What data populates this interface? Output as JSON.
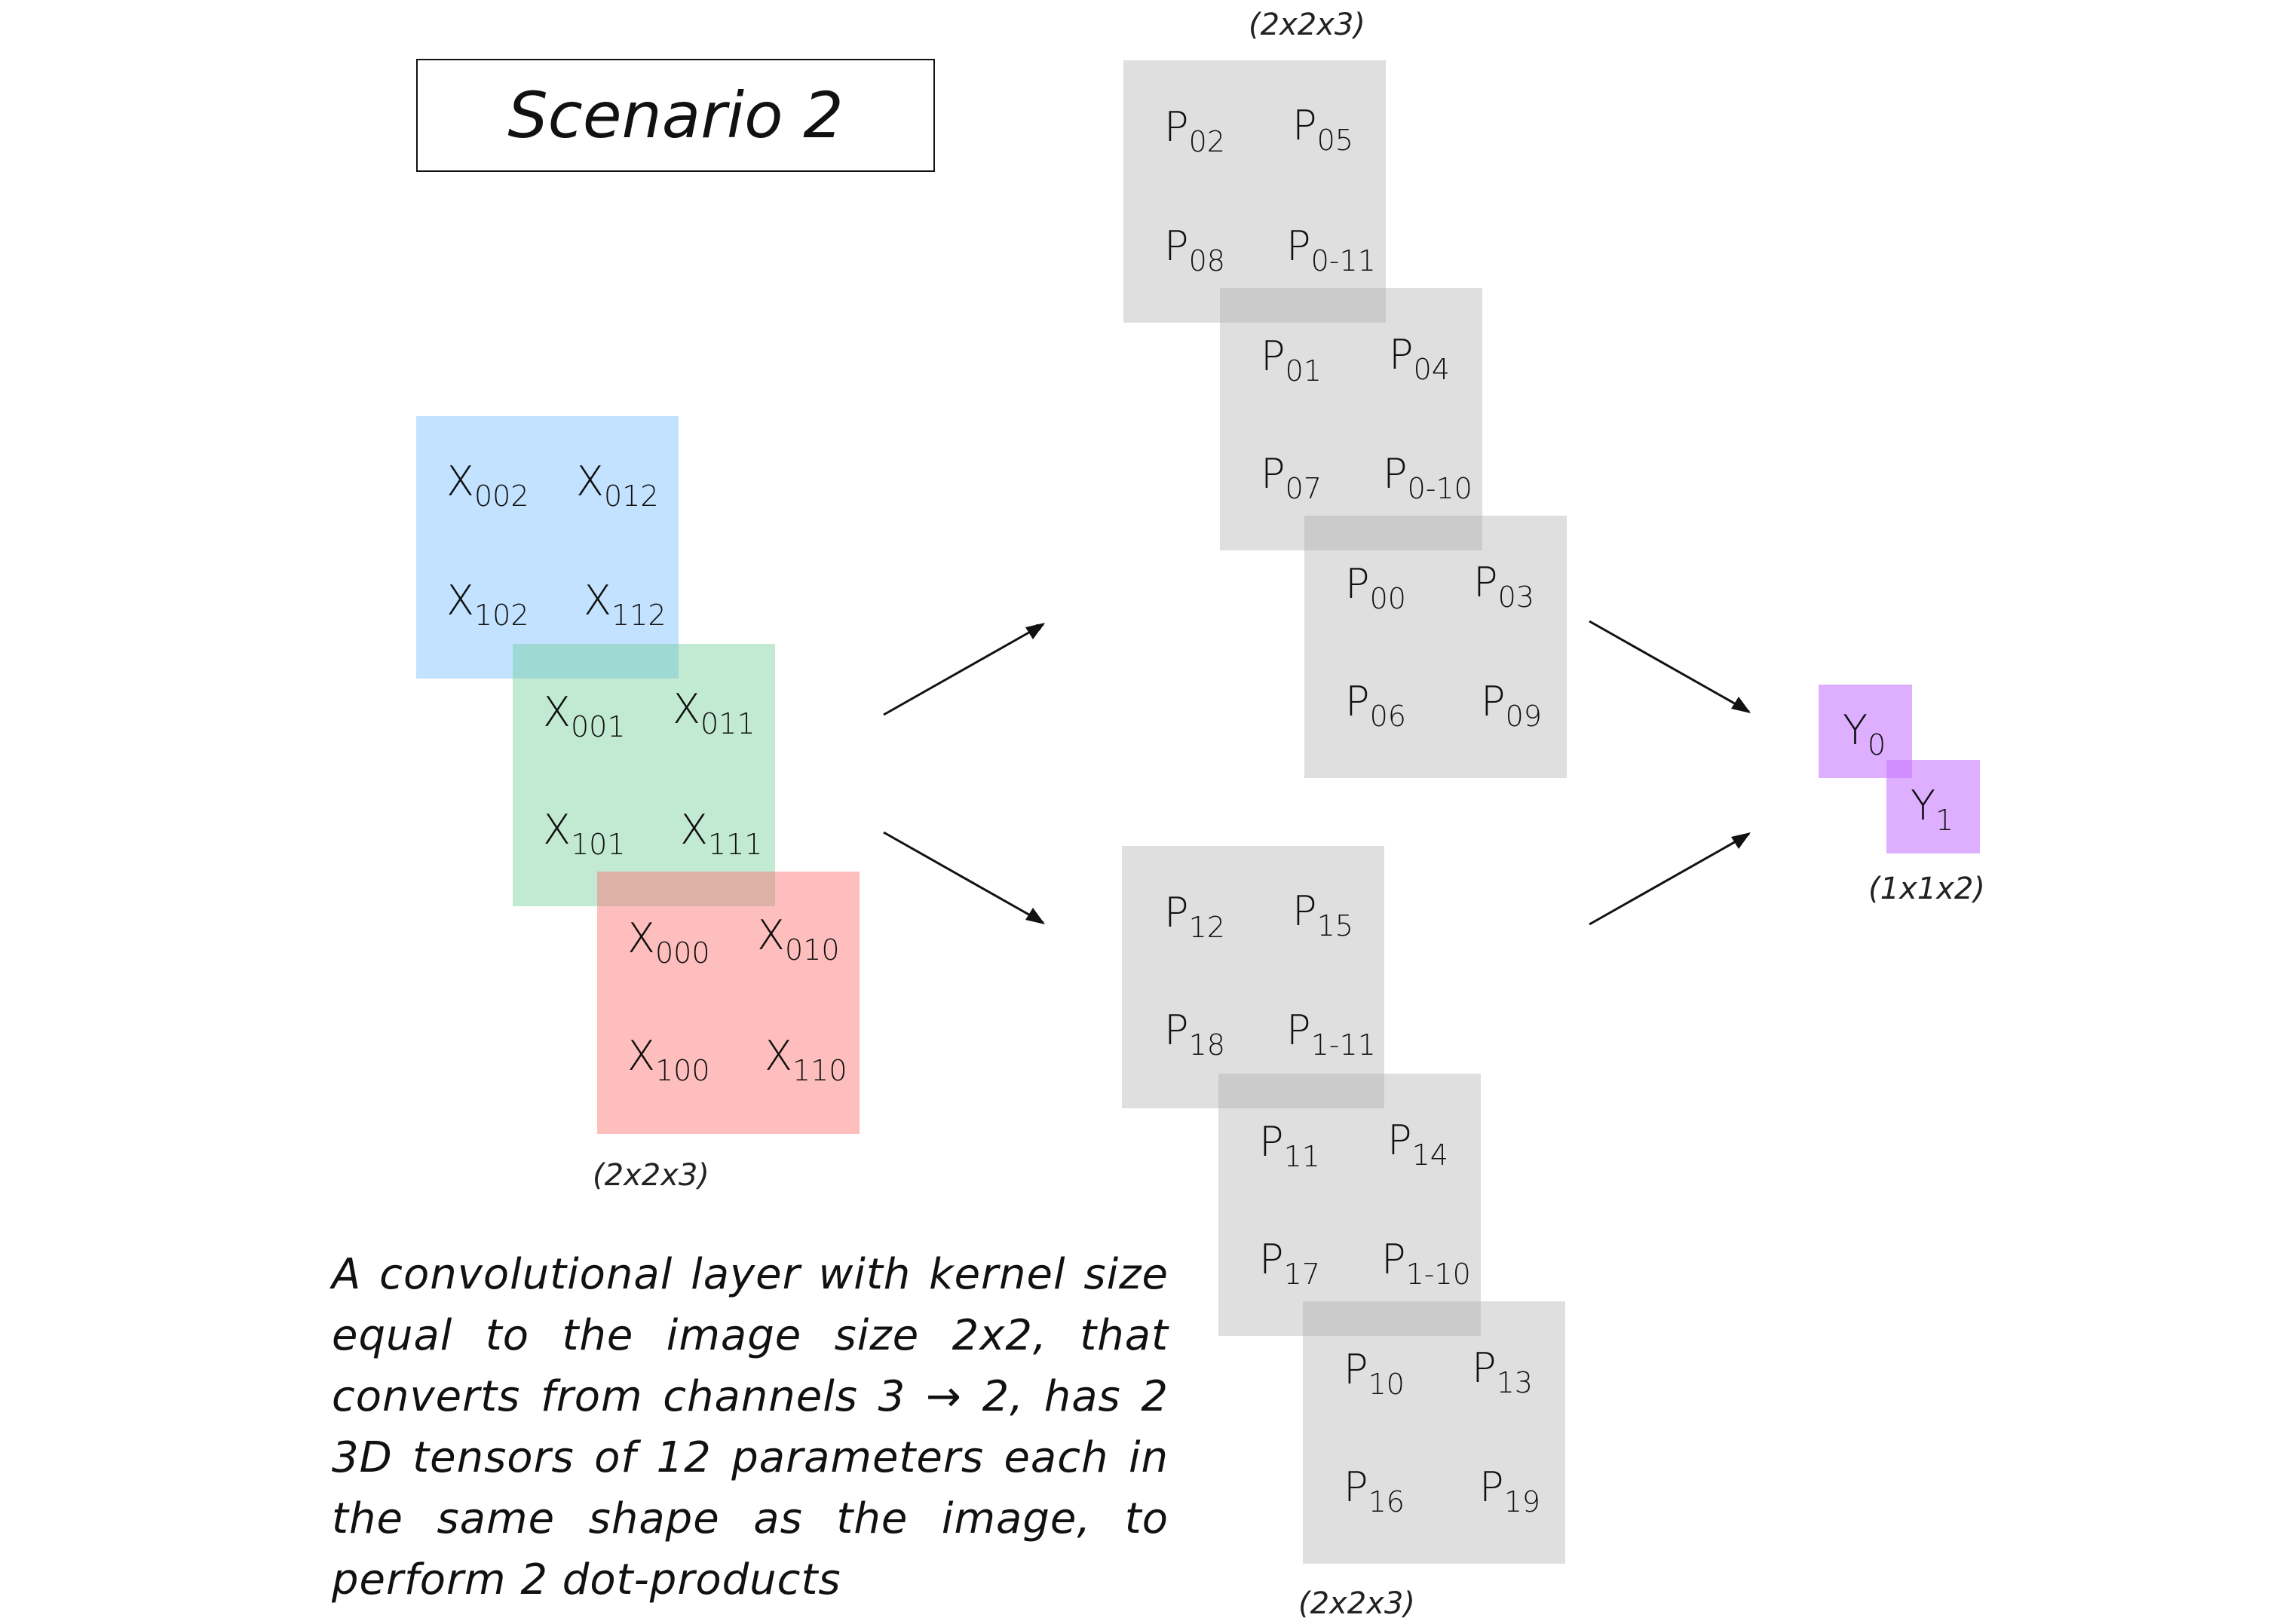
{
  "title": "Scenario 2",
  "input": {
    "channel2": [
      {
        "b": "X",
        "s": "002"
      },
      {
        "b": "X",
        "s": "012"
      },
      {
        "b": "X",
        "s": "102"
      },
      {
        "b": "X",
        "s": "112"
      }
    ],
    "channel1": [
      {
        "b": "X",
        "s": "001"
      },
      {
        "b": "X",
        "s": "011"
      },
      {
        "b": "X",
        "s": "101"
      },
      {
        "b": "X",
        "s": "111"
      }
    ],
    "channel0": [
      {
        "b": "X",
        "s": "000"
      },
      {
        "b": "X",
        "s": "010"
      },
      {
        "b": "X",
        "s": "100"
      },
      {
        "b": "X",
        "s": "110"
      }
    ],
    "shape": "(2x2x3)"
  },
  "kernel0": {
    "shape": "(2x2x3)",
    "layer_back": [
      {
        "b": "P",
        "s": "02"
      },
      {
        "b": "P",
        "s": "05"
      },
      {
        "b": "P",
        "s": "08"
      },
      {
        "b": "P",
        "s": "0-11"
      }
    ],
    "layer_mid": [
      {
        "b": "P",
        "s": "01"
      },
      {
        "b": "P",
        "s": "04"
      },
      {
        "b": "P",
        "s": "07"
      },
      {
        "b": "P",
        "s": "0-10"
      }
    ],
    "layer_front": [
      {
        "b": "P",
        "s": "00"
      },
      {
        "b": "P",
        "s": "03"
      },
      {
        "b": "P",
        "s": "06"
      },
      {
        "b": "P",
        "s": "09"
      }
    ]
  },
  "kernel1": {
    "shape": "(2x2x3)",
    "layer_back": [
      {
        "b": "P",
        "s": "12"
      },
      {
        "b": "P",
        "s": "15"
      },
      {
        "b": "P",
        "s": "18"
      },
      {
        "b": "P",
        "s": "1-11"
      }
    ],
    "layer_mid": [
      {
        "b": "P",
        "s": "11"
      },
      {
        "b": "P",
        "s": "14"
      },
      {
        "b": "P",
        "s": "17"
      },
      {
        "b": "P",
        "s": "1-10"
      }
    ],
    "layer_front": [
      {
        "b": "P",
        "s": "10"
      },
      {
        "b": "P",
        "s": "13"
      },
      {
        "b": "P",
        "s": "16"
      },
      {
        "b": "P",
        "s": "19"
      }
    ]
  },
  "output": {
    "items": [
      {
        "b": "Y",
        "s": "0"
      },
      {
        "b": "Y",
        "s": "1"
      }
    ],
    "shape": "(1x1x2)"
  },
  "description": "A convolutional layer with kernel size equal to the image size 2x2, that converts from channels 3 → 2, has 2 3D tensors of 12 parameters each in the same shape as the image, to perform 2 dot-products"
}
